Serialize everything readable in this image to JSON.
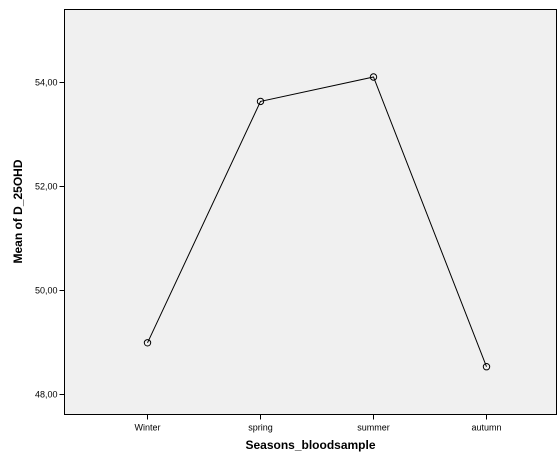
{
  "chart_data": {
    "type": "line",
    "title": "",
    "xlabel": "Seasons_bloodsample",
    "ylabel": "Mean of D_25OHD",
    "categories": [
      "Winter",
      "spring",
      "summer",
      "autumn"
    ],
    "values": [
      48.98,
      53.63,
      54.1,
      48.52
    ],
    "ylim": [
      47.6,
      55.4
    ],
    "yticks": [
      48,
      50,
      52,
      54
    ],
    "ytick_labels": [
      "48,00",
      "50,00",
      "52,00",
      "54,00"
    ],
    "grid": false,
    "legend": "none",
    "marker": "circle-open",
    "colors": {
      "plot_background": "#f0f0f0",
      "line": "#000000"
    }
  }
}
